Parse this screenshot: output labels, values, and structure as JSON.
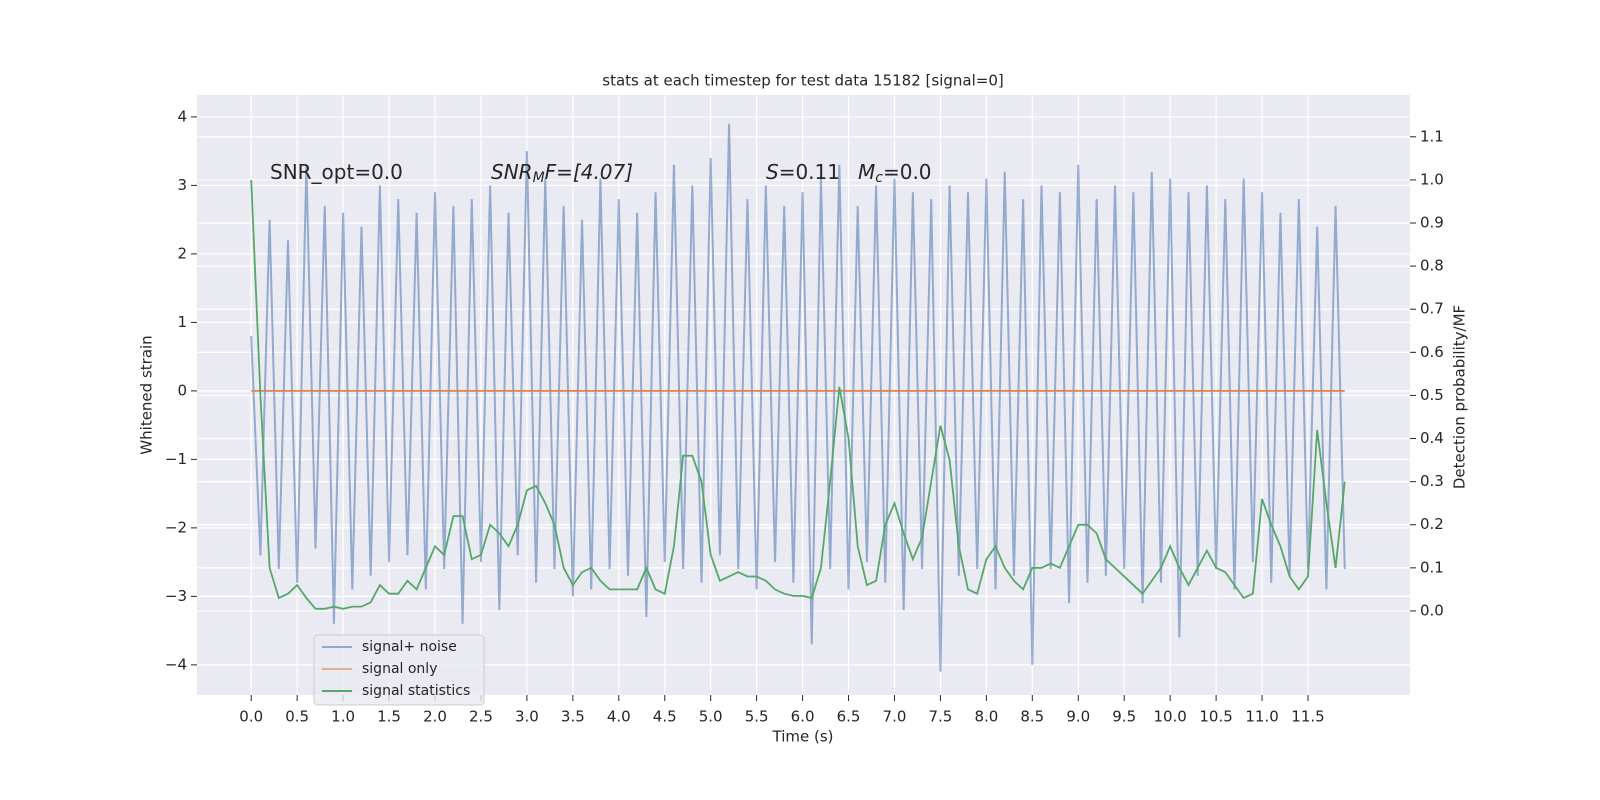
{
  "chart_data": {
    "type": "line",
    "title": "stats at each timestep for test data 15182 [signal=0]",
    "xlabel": "Time (s)",
    "ylabel": "Whitened strain",
    "y2label": "Detection probability/MF",
    "annotations": [
      {
        "parts": [
          "SNR_opt=0.0"
        ]
      },
      {
        "parts": [
          "SNR",
          "M",
          "F=[4.07]"
        ]
      },
      {
        "parts": [
          "S",
          "=0.11"
        ]
      },
      {
        "parts": [
          "M",
          "c",
          "=0.0"
        ]
      }
    ],
    "x": [
      0,
      0.1,
      0.2,
      0.3,
      0.4,
      0.5,
      0.6,
      0.7,
      0.8,
      0.9,
      1,
      1.1,
      1.2,
      1.3,
      1.4,
      1.5,
      1.6,
      1.7,
      1.8,
      1.9,
      2,
      2.1,
      2.2,
      2.3,
      2.4,
      2.5,
      2.6,
      2.7,
      2.8,
      2.9,
      3,
      3.1,
      3.2,
      3.3,
      3.4,
      3.5,
      3.6,
      3.7,
      3.8,
      3.9,
      4,
      4.1,
      4.2,
      4.3,
      4.4,
      4.5,
      4.6,
      4.7,
      4.8,
      4.9,
      5,
      5.1,
      5.2,
      5.3,
      5.4,
      5.5,
      5.6,
      5.7,
      5.8,
      5.9,
      6,
      6.1,
      6.2,
      6.3,
      6.4,
      6.5,
      6.6,
      6.7,
      6.8,
      6.9,
      7,
      7.1,
      7.2,
      7.3,
      7.4,
      7.5,
      7.6,
      7.7,
      7.8,
      7.9,
      8,
      8.1,
      8.2,
      8.3,
      8.4,
      8.5,
      8.6,
      8.7,
      8.8,
      8.9,
      9,
      9.1,
      9.2,
      9.3,
      9.4,
      9.5,
      9.6,
      9.7,
      9.8,
      9.9,
      10,
      10.1,
      10.2,
      10.3,
      10.4,
      10.5,
      10.6,
      10.7,
      10.8,
      10.9,
      11,
      11.1,
      11.2,
      11.3,
      11.4,
      11.5,
      11.6,
      11.7,
      11.8,
      11.9
    ],
    "series": [
      {
        "name": "signal+ noise",
        "color": "#4c72b0",
        "values": [
          0.8,
          -2.4,
          2.5,
          -2.6,
          2.2,
          -2.8,
          3.3,
          -2.3,
          2.7,
          -3.4,
          2.6,
          -2.9,
          2.4,
          -2.7,
          3.0,
          -2.5,
          2.8,
          -2.4,
          2.6,
          -2.9,
          2.9,
          -2.6,
          2.7,
          -3.4,
          2.8,
          -2.5,
          3.0,
          -3.2,
          2.6,
          -2.4,
          3.5,
          -2.8,
          3.1,
          -2.6,
          2.7,
          -3.0,
          2.5,
          -2.9,
          3.1,
          -2.6,
          2.8,
          -2.7,
          2.6,
          -3.3,
          2.9,
          -2.5,
          3.3,
          -2.6,
          3.0,
          -2.8,
          3.4,
          -2.4,
          3.9,
          -2.6,
          2.8,
          -2.9,
          3.0,
          -2.5,
          2.7,
          -2.8,
          2.9,
          -3.7,
          3.1,
          -2.6,
          3.3,
          -2.9,
          2.7,
          -2.5,
          3.0,
          -2.8,
          3.1,
          -3.2,
          2.9,
          -2.6,
          2.8,
          -4.1,
          3.0,
          -2.7,
          2.9,
          -2.6,
          3.1,
          -2.9,
          3.2,
          -2.7,
          2.8,
          -4.0,
          3.0,
          -2.6,
          2.9,
          -3.1,
          3.3,
          -2.8,
          2.8,
          -2.7,
          3.0,
          -2.6,
          2.9,
          -3.1,
          3.2,
          -2.8,
          3.1,
          -3.6,
          2.9,
          -2.7,
          3.0,
          -2.6,
          2.8,
          -2.9,
          3.1,
          -2.5,
          2.9,
          -2.8,
          2.6,
          -2.7,
          2.8,
          -2.6,
          2.4,
          -2.9,
          2.7,
          -2.6
        ]
      },
      {
        "name": "signal only",
        "color": "#dd8452",
        "values": [
          0,
          0,
          0,
          0,
          0,
          0,
          0,
          0,
          0,
          0,
          0,
          0,
          0,
          0,
          0,
          0,
          0,
          0,
          0,
          0,
          0,
          0,
          0,
          0,
          0,
          0,
          0,
          0,
          0,
          0,
          0,
          0,
          0,
          0,
          0,
          0,
          0,
          0,
          0,
          0,
          0,
          0,
          0,
          0,
          0,
          0,
          0,
          0,
          0,
          0,
          0,
          0,
          0,
          0,
          0,
          0,
          0,
          0,
          0,
          0,
          0,
          0,
          0,
          0,
          0,
          0,
          0,
          0,
          0,
          0,
          0,
          0,
          0,
          0,
          0,
          0,
          0,
          0,
          0,
          0,
          0,
          0,
          0,
          0,
          0,
          0,
          0,
          0,
          0,
          0,
          0,
          0,
          0,
          0,
          0,
          0,
          0,
          0,
          0,
          0,
          0,
          0,
          0,
          0,
          0,
          0,
          0,
          0,
          0,
          0,
          0,
          0,
          0,
          0,
          0,
          0,
          0,
          0,
          0,
          0
        ]
      },
      {
        "name": "signal statistics",
        "color": "#55a868",
        "axis": "y2",
        "values": [
          1.0,
          0.5,
          0.1,
          0.03,
          0.04,
          0.06,
          0.03,
          0.005,
          0.005,
          0.01,
          0.005,
          0.01,
          0.01,
          0.02,
          0.06,
          0.04,
          0.04,
          0.07,
          0.05,
          0.1,
          0.15,
          0.13,
          0.22,
          0.22,
          0.12,
          0.13,
          0.2,
          0.18,
          0.15,
          0.2,
          0.28,
          0.29,
          0.25,
          0.2,
          0.1,
          0.06,
          0.09,
          0.1,
          0.07,
          0.05,
          0.05,
          0.05,
          0.05,
          0.1,
          0.05,
          0.04,
          0.15,
          0.36,
          0.36,
          0.3,
          0.13,
          0.07,
          0.08,
          0.09,
          0.08,
          0.08,
          0.07,
          0.05,
          0.04,
          0.035,
          0.035,
          0.03,
          0.1,
          0.3,
          0.52,
          0.4,
          0.15,
          0.06,
          0.07,
          0.2,
          0.25,
          0.18,
          0.12,
          0.17,
          0.3,
          0.43,
          0.35,
          0.15,
          0.05,
          0.04,
          0.12,
          0.15,
          0.1,
          0.07,
          0.05,
          0.1,
          0.1,
          0.11,
          0.1,
          0.15,
          0.2,
          0.2,
          0.18,
          0.12,
          0.1,
          0.08,
          0.06,
          0.04,
          0.07,
          0.1,
          0.15,
          0.1,
          0.06,
          0.1,
          0.14,
          0.1,
          0.09,
          0.06,
          0.03,
          0.04,
          0.26,
          0.2,
          0.15,
          0.08,
          0.05,
          0.08,
          0.42,
          0.25,
          0.1,
          0.3
        ]
      }
    ],
    "xlim": [
      -0.59,
      12.61
    ],
    "xticks": [
      {
        "value": 0,
        "label": "0.0"
      },
      0.5,
      {
        "value": 1,
        "label": "1.0"
      },
      1.5,
      {
        "value": 2,
        "label": "2.0"
      },
      2.5,
      {
        "value": 3,
        "label": "3.0"
      },
      3.5,
      {
        "value": 4,
        "label": "4.0"
      },
      4.5,
      {
        "value": 5,
        "label": "5.0"
      },
      5.5,
      {
        "value": 6,
        "label": "6.0"
      },
      6.5,
      {
        "value": 7,
        "label": "7.0"
      },
      7.5,
      {
        "value": 8,
        "label": "8.0"
      },
      8.5,
      {
        "value": 9,
        "label": "9.0"
      },
      9.5,
      {
        "value": 10,
        "label": "10.0"
      },
      10.5,
      {
        "value": 11,
        "label": "11.0"
      },
      11.5
    ],
    "ylim": [
      -4.44,
      4.32
    ],
    "yticks": [
      {
        "value": -4,
        "label": "−4"
      },
      {
        "value": -3,
        "label": "−3"
      },
      {
        "value": -2,
        "label": "−2"
      },
      {
        "value": -1,
        "label": "−1"
      },
      0,
      1,
      2,
      3,
      4
    ],
    "y2lim": [
      -0.195,
      1.197
    ],
    "y2ticks": [
      {
        "value": 0,
        "label": "0.0"
      },
      0.1,
      0.2,
      0.3,
      0.4,
      0.5,
      0.6,
      0.7,
      0.8,
      0.9,
      {
        "value": 1,
        "label": "1.0"
      },
      1.1
    ],
    "grid": true
  }
}
